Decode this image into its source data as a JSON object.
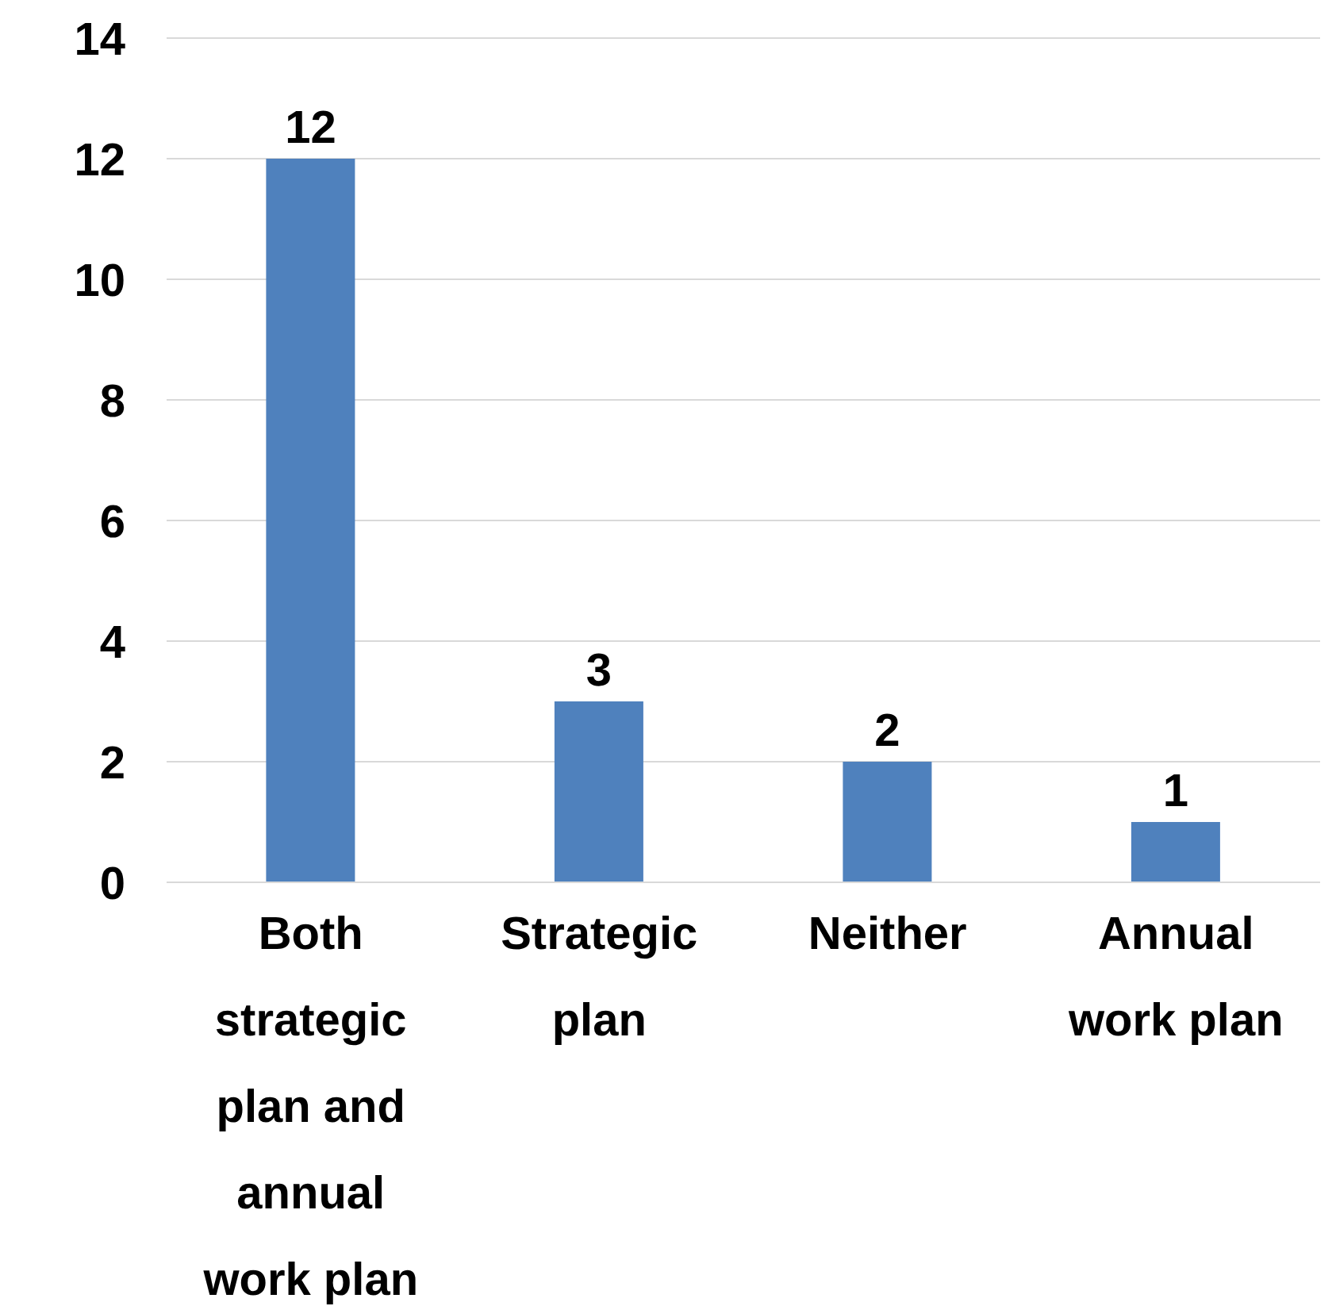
{
  "chart_data": {
    "type": "bar",
    "categories": [
      "Both strategic plan and annual work plan",
      "Strategic plan",
      "Neither",
      "Annual work plan"
    ],
    "values": [
      12,
      3,
      2,
      1
    ],
    "color": "#4f81bd",
    "ylim": [
      0,
      14
    ],
    "yticks": [
      0,
      2,
      4,
      6,
      8,
      10,
      12,
      14
    ],
    "grid": "y",
    "data_labels": true
  }
}
